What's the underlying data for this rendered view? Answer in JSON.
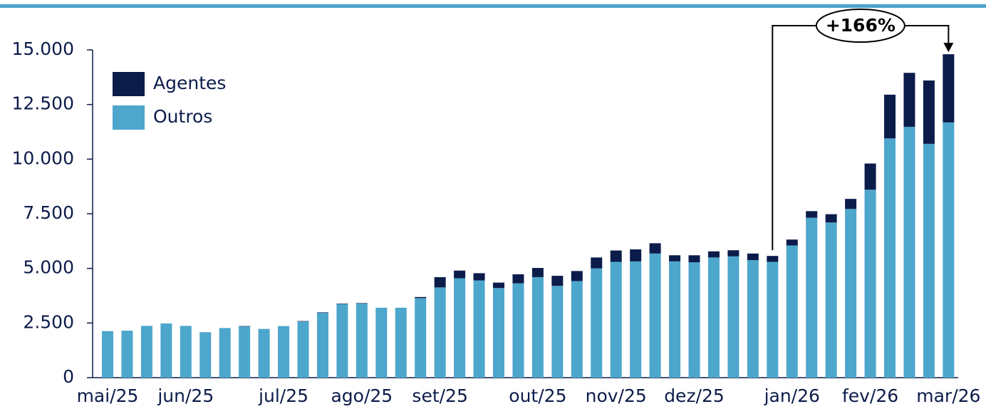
{
  "chart_data": {
    "type": "stacked_bar",
    "categories": [
      "mai/25",
      null,
      null,
      null,
      "jun/25",
      null,
      null,
      null,
      null,
      "jul/25",
      null,
      null,
      null,
      "ago/25",
      null,
      null,
      null,
      "set/25",
      null,
      null,
      null,
      null,
      "out/25",
      null,
      null,
      null,
      "nov/25",
      null,
      null,
      null,
      "dez/25",
      null,
      null,
      null,
      null,
      "jan/26",
      null,
      null,
      null,
      "fev/26",
      null,
      null,
      null,
      "mar/26"
    ],
    "series": [
      {
        "name": "Outros",
        "color": "#4da6cc",
        "values": [
          2130,
          2150,
          2370,
          2480,
          2370,
          2080,
          2270,
          2340,
          2230,
          2360,
          2570,
          2970,
          3370,
          3390,
          3200,
          3200,
          3640,
          4130,
          4550,
          4450,
          4100,
          4320,
          4600,
          4200,
          4420,
          5000,
          5300,
          5320,
          5680,
          5320,
          5280,
          5500,
          5550,
          5380,
          5300,
          6050,
          7320,
          7100,
          7720,
          8600,
          10950,
          11480,
          10700,
          11680
        ]
      },
      {
        "name": "Agentes",
        "color": "#0c1c4a",
        "values": [
          0,
          0,
          0,
          0,
          0,
          0,
          0,
          20,
          0,
          0,
          20,
          20,
          20,
          20,
          0,
          0,
          50,
          470,
          350,
          330,
          250,
          410,
          420,
          460,
          460,
          500,
          520,
          550,
          470,
          280,
          320,
          280,
          280,
          300,
          270,
          270,
          300,
          380,
          460,
          1200,
          2000,
          2470,
          2900,
          3120
        ]
      }
    ],
    "ylim": [
      0,
      15000
    ],
    "yticks": [
      0,
      {
        "value": 2500,
        "label": "2.500"
      },
      {
        "value": 5000,
        "label": "5.000"
      },
      {
        "value": 7500,
        "label": "7.500"
      },
      {
        "value": 10000,
        "label": "10.000"
      },
      {
        "value": 12500,
        "label": "12.500"
      },
      {
        "value": 15000,
        "label": "15.000"
      }
    ],
    "annotation": "+166%"
  }
}
